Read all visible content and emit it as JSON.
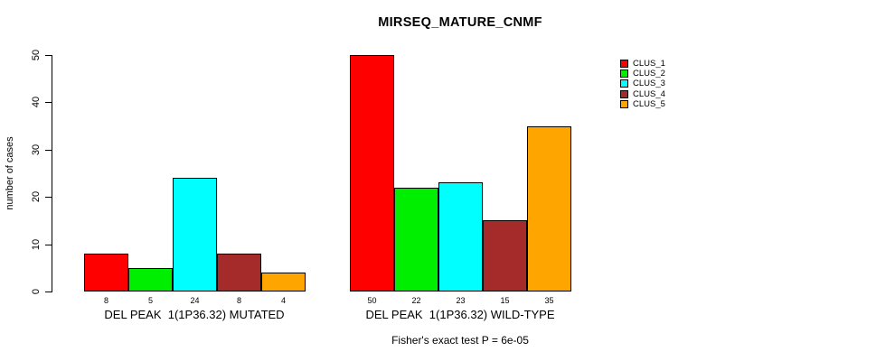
{
  "chart_data": {
    "type": "bar",
    "title": "MIRSEQ_MATURE_CNMF",
    "ylabel": "number of cases",
    "xlabel": "",
    "ylim": [
      0,
      50
    ],
    "yticks": [
      0,
      10,
      20,
      30,
      40,
      50
    ],
    "grid": false,
    "legend_position": "right",
    "categories": [
      "DEL PEAK  1(1P36.32) MUTATED",
      "DEL PEAK  1(1P36.32) WILD-TYPE"
    ],
    "series": [
      {
        "name": "CLUS_1",
        "color": "#FF0000",
        "values": [
          8,
          50
        ]
      },
      {
        "name": "CLUS_2",
        "color": "#00EE00",
        "values": [
          5,
          22
        ]
      },
      {
        "name": "CLUS_3",
        "color": "#00FFFF",
        "values": [
          24,
          23
        ]
      },
      {
        "name": "CLUS_4",
        "color": "#A52A2A",
        "values": [
          8,
          15
        ]
      },
      {
        "name": "CLUS_5",
        "color": "#FFA500",
        "values": [
          4,
          35
        ]
      }
    ],
    "bar_value_labels": [
      [
        "8",
        "5",
        "24",
        "8",
        "4"
      ],
      [
        "50",
        "22",
        "23",
        "15",
        "35"
      ]
    ],
    "annotation": "Fisher's exact test P = 6e-05",
    "axis_color": "#000000",
    "background_color": "#FFFFFF"
  }
}
